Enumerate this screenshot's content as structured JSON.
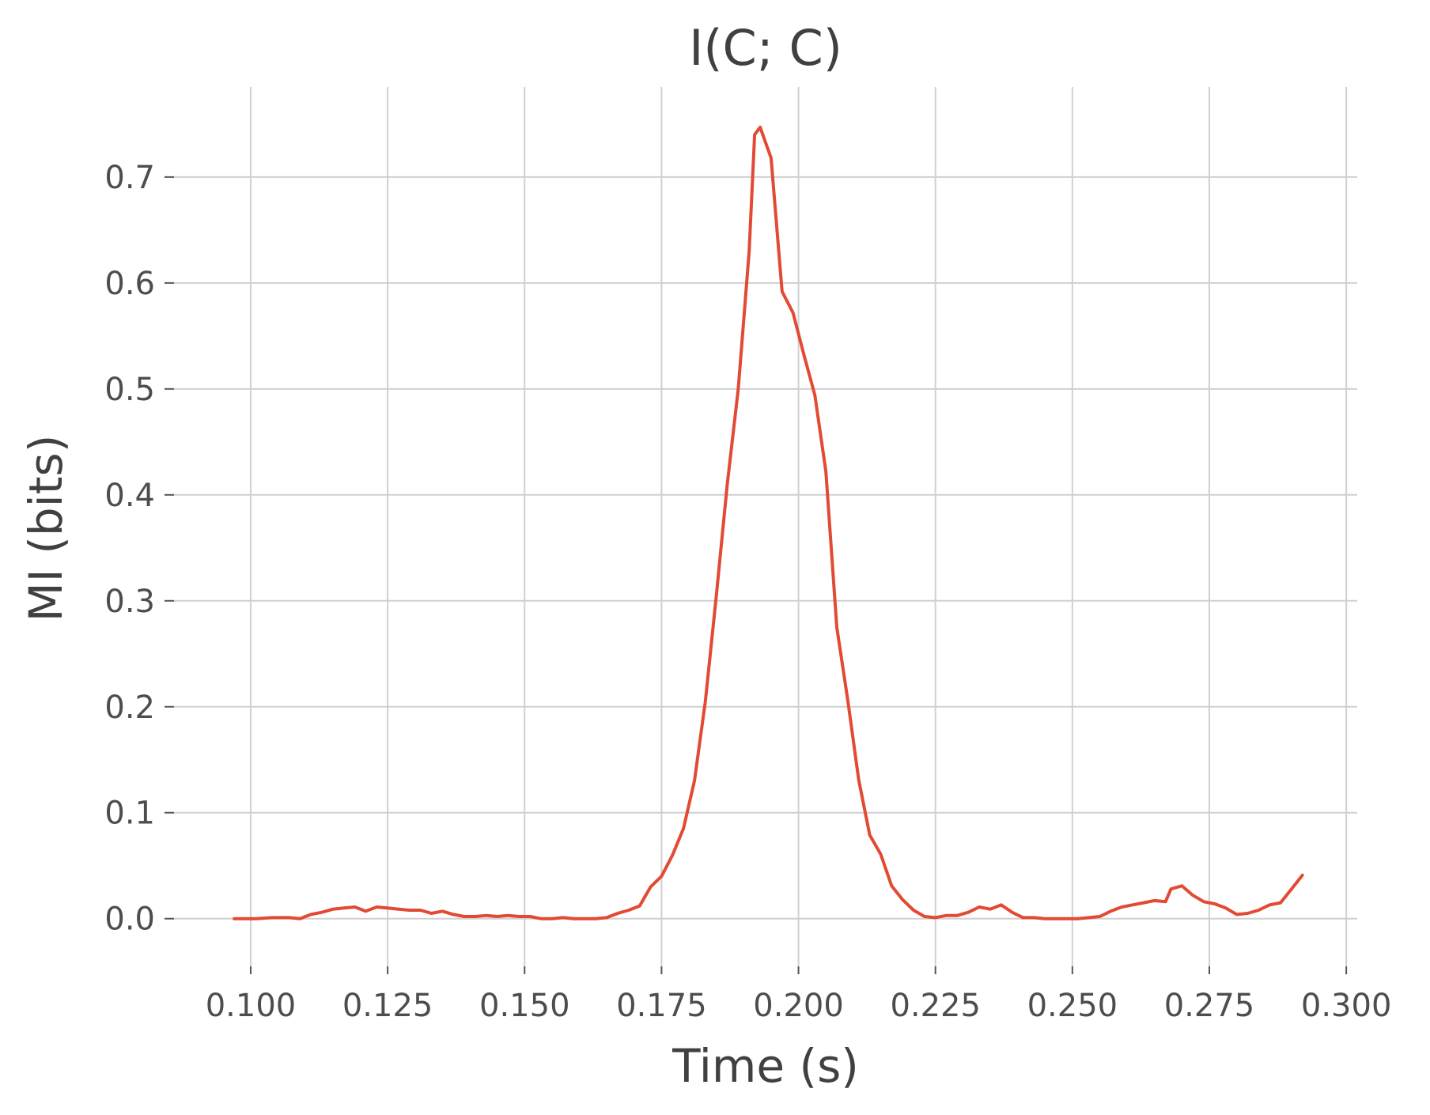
{
  "chart_data": {
    "type": "line",
    "title": "I(C; C)",
    "xlabel": "Time (s)",
    "ylabel": "MI (bits)",
    "xlim": [
      0.086,
      0.302
    ],
    "ylim": [
      -0.045,
      0.785
    ],
    "grid": true,
    "x_ticks": [
      0.1,
      0.125,
      0.15,
      0.175,
      0.2,
      0.225,
      0.25,
      0.275,
      0.3
    ],
    "x_tick_labels": [
      "0.100",
      "0.125",
      "0.150",
      "0.175",
      "0.200",
      "0.225",
      "0.250",
      "0.275",
      "0.300"
    ],
    "y_ticks": [
      0.0,
      0.1,
      0.2,
      0.3,
      0.4,
      0.5,
      0.6,
      0.7
    ],
    "y_tick_labels": [
      "0.0",
      "0.1",
      "0.2",
      "0.3",
      "0.4",
      "0.5",
      "0.6",
      "0.7"
    ],
    "line_color": "#e24a33",
    "series": [
      {
        "points": [
          [
            0.097,
            0.0
          ],
          [
            0.101,
            0.0
          ],
          [
            0.104,
            0.001
          ],
          [
            0.107,
            0.001
          ],
          [
            0.109,
            0.0
          ],
          [
            0.111,
            0.004
          ],
          [
            0.113,
            0.006
          ],
          [
            0.115,
            0.009
          ],
          [
            0.117,
            0.01
          ],
          [
            0.119,
            0.011
          ],
          [
            0.121,
            0.007
          ],
          [
            0.123,
            0.011
          ],
          [
            0.125,
            0.01
          ],
          [
            0.127,
            0.009
          ],
          [
            0.129,
            0.008
          ],
          [
            0.131,
            0.008
          ],
          [
            0.133,
            0.005
          ],
          [
            0.135,
            0.007
          ],
          [
            0.137,
            0.004
          ],
          [
            0.139,
            0.002
          ],
          [
            0.141,
            0.002
          ],
          [
            0.143,
            0.003
          ],
          [
            0.145,
            0.002
          ],
          [
            0.147,
            0.003
          ],
          [
            0.149,
            0.002
          ],
          [
            0.151,
            0.002
          ],
          [
            0.153,
            0.0
          ],
          [
            0.155,
            0.0
          ],
          [
            0.157,
            0.001
          ],
          [
            0.159,
            0.0
          ],
          [
            0.161,
            0.0
          ],
          [
            0.163,
            0.0
          ],
          [
            0.165,
            0.001
          ],
          [
            0.167,
            0.005
          ],
          [
            0.169,
            0.008
          ],
          [
            0.171,
            0.012
          ],
          [
            0.173,
            0.03
          ],
          [
            0.175,
            0.04
          ],
          [
            0.177,
            0.06
          ],
          [
            0.179,
            0.085
          ],
          [
            0.181,
            0.13
          ],
          [
            0.183,
            0.205
          ],
          [
            0.185,
            0.305
          ],
          [
            0.187,
            0.41
          ],
          [
            0.189,
            0.5
          ],
          [
            0.191,
            0.63
          ],
          [
            0.192,
            0.74
          ],
          [
            0.193,
            0.747
          ],
          [
            0.195,
            0.718
          ],
          [
            0.197,
            0.592
          ],
          [
            0.199,
            0.572
          ],
          [
            0.201,
            0.532
          ],
          [
            0.203,
            0.494
          ],
          [
            0.205,
            0.422
          ],
          [
            0.207,
            0.275
          ],
          [
            0.209,
            0.206
          ],
          [
            0.211,
            0.131
          ],
          [
            0.213,
            0.079
          ],
          [
            0.215,
            0.061
          ],
          [
            0.217,
            0.031
          ],
          [
            0.219,
            0.018
          ],
          [
            0.221,
            0.008
          ],
          [
            0.223,
            0.002
          ],
          [
            0.225,
            0.001
          ],
          [
            0.227,
            0.003
          ],
          [
            0.229,
            0.003
          ],
          [
            0.231,
            0.006
          ],
          [
            0.233,
            0.011
          ],
          [
            0.235,
            0.009
          ],
          [
            0.237,
            0.013
          ],
          [
            0.239,
            0.006
          ],
          [
            0.241,
            0.001
          ],
          [
            0.243,
            0.001
          ],
          [
            0.245,
            0.0
          ],
          [
            0.247,
            0.0
          ],
          [
            0.249,
            0.0
          ],
          [
            0.251,
            0.0
          ],
          [
            0.253,
            0.001
          ],
          [
            0.255,
            0.002
          ],
          [
            0.257,
            0.007
          ],
          [
            0.259,
            0.011
          ],
          [
            0.261,
            0.013
          ],
          [
            0.263,
            0.015
          ],
          [
            0.265,
            0.017
          ],
          [
            0.267,
            0.016
          ],
          [
            0.268,
            0.028
          ],
          [
            0.27,
            0.031
          ],
          [
            0.272,
            0.022
          ],
          [
            0.274,
            0.016
          ],
          [
            0.276,
            0.014
          ],
          [
            0.278,
            0.01
          ],
          [
            0.28,
            0.004
          ],
          [
            0.282,
            0.005
          ],
          [
            0.284,
            0.008
          ],
          [
            0.286,
            0.013
          ],
          [
            0.288,
            0.015
          ],
          [
            0.29,
            0.028
          ],
          [
            0.292,
            0.041
          ]
        ]
      }
    ]
  }
}
